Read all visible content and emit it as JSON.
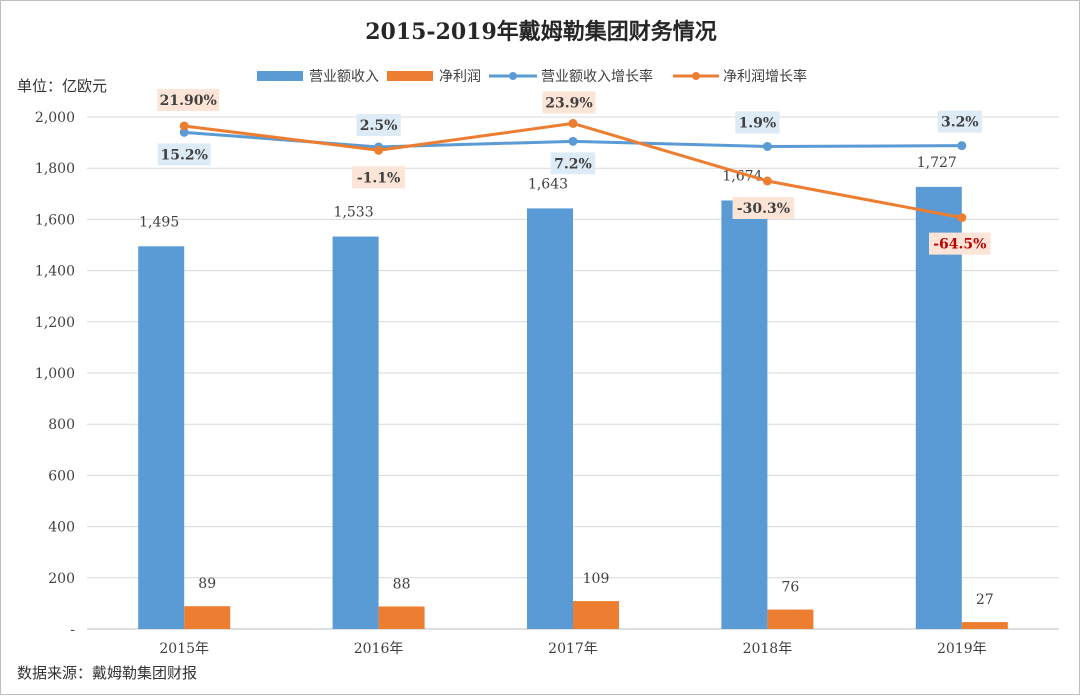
{
  "chart_data": {
    "type": "bar+line",
    "title": "2015-2019年戴姆勒集团财务情况",
    "unit_label": "单位：亿欧元",
    "source": "数据来源：戴姆勒集团财报",
    "categories": [
      "2015年",
      "2016年",
      "2017年",
      "2018年",
      "2019年"
    ],
    "ylim": [
      0,
      2000
    ],
    "yticks": [
      "-",
      "200",
      "400",
      "600",
      "800",
      "1,000",
      "1,200",
      "1,400",
      "1,600",
      "1,800",
      "2,000"
    ],
    "series": [
      {
        "name": "营业额收入",
        "kind": "bar",
        "color": "#5b9bd5",
        "values": [
          1495,
          1533,
          1643,
          1674,
          1727
        ],
        "labels": [
          "1,495",
          "1,533",
          "1,643",
          "1,674",
          "1,727"
        ]
      },
      {
        "name": "净利润",
        "kind": "bar",
        "color": "#ed7d31",
        "values": [
          89,
          88,
          109,
          76,
          27
        ],
        "labels": [
          "89",
          "88",
          "109",
          "76",
          "27"
        ]
      },
      {
        "name": "营业额收入增长率",
        "kind": "line",
        "color": "#5b9bd5",
        "values": [
          15.2,
          2.5,
          7.2,
          1.9,
          3.2
        ],
        "labels": [
          "15.2%",
          "2.5%",
          "7.2%",
          "1.9%",
          "3.2%"
        ],
        "plot_as": [
          1940,
          1883,
          1905,
          1885,
          1888
        ],
        "label_fill": "#ddebf7"
      },
      {
        "name": "净利润增长率",
        "kind": "line",
        "color": "#ed7d31",
        "values": [
          21.9,
          -1.1,
          23.9,
          -30.3,
          -64.5
        ],
        "labels": [
          "21.90%",
          "-1.1%",
          "23.9%",
          "-30.3%",
          "-64.5%"
        ],
        "plot_as": [
          1965,
          1870,
          1975,
          1750,
          1607
        ],
        "label_fill": "#fce4d6",
        "highlight_color": "#c00000"
      }
    ]
  }
}
